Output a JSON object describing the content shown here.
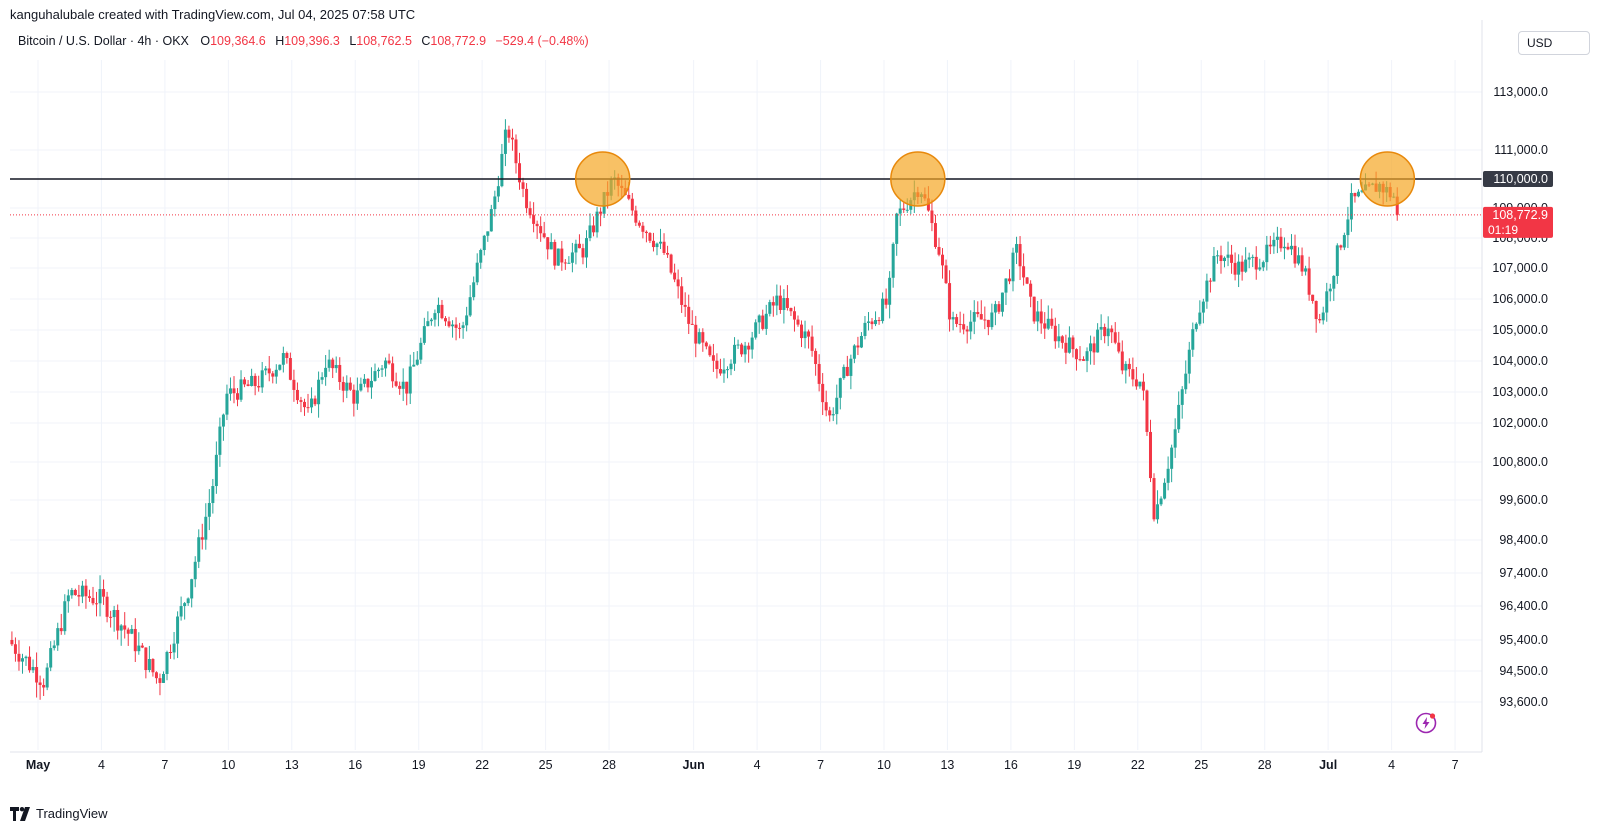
{
  "header": {
    "credit": "kanguhalubale created with TradingView.com, Jul 04, 2025 07:58 UTC",
    "symbol": "Bitcoin / U.S. Dollar · 4h · OKX",
    "open_label": "O",
    "open": "109,364.6",
    "high_label": "H",
    "high": "109,396.3",
    "low_label": "L",
    "low": "108,762.5",
    "close_label": "C",
    "close": "108,772.9",
    "change": "−529.4 (−0.48%)",
    "currency": "USD"
  },
  "footer": {
    "brand": "TradingView"
  },
  "icons": {
    "brand": "tradingview-logo-icon",
    "bolt": "lightning-bolt-icon"
  },
  "colors": {
    "up": "#26a69a",
    "down": "#f23645",
    "highlight": "#f5a623",
    "resistance": "#131722"
  },
  "chart_data": {
    "type": "candlestick",
    "interval": "4h",
    "y_axis_ticks": [
      "113,000.0",
      "111,000.0",
      "109,000.0",
      "108,000.0",
      "107,000.0",
      "106,000.0",
      "105,000.0",
      "104,000.0",
      "103,000.0",
      "102,000.0",
      "100,800.0",
      "99,600.0",
      "98,400.0",
      "97,400.0",
      "96,400.0",
      "95,400.0",
      "94,500.0",
      "93,600.0"
    ],
    "y_tick_values": [
      113000,
      111000,
      109000,
      108000,
      107000,
      106000,
      105000,
      104000,
      103000,
      102000,
      100800,
      99600,
      98400,
      97400,
      96400,
      95400,
      94500,
      93600
    ],
    "x_axis_ticks": [
      {
        "label": "May",
        "bold": true,
        "day": 0
      },
      {
        "label": "4",
        "day": 3
      },
      {
        "label": "7",
        "day": 6
      },
      {
        "label": "10",
        "day": 9
      },
      {
        "label": "13",
        "day": 12
      },
      {
        "label": "16",
        "day": 15
      },
      {
        "label": "19",
        "day": 18
      },
      {
        "label": "22",
        "day": 21
      },
      {
        "label": "25",
        "day": 24
      },
      {
        "label": "28",
        "day": 27
      },
      {
        "label": "Jun",
        "bold": true,
        "day": 31
      },
      {
        "label": "4",
        "day": 34
      },
      {
        "label": "7",
        "day": 37
      },
      {
        "label": "10",
        "day": 40
      },
      {
        "label": "13",
        "day": 43
      },
      {
        "label": "16",
        "day": 46
      },
      {
        "label": "19",
        "day": 49
      },
      {
        "label": "22",
        "day": 52
      },
      {
        "label": "25",
        "day": 55
      },
      {
        "label": "28",
        "day": 58
      },
      {
        "label": "Jul",
        "bold": true,
        "day": 61
      },
      {
        "label": "4",
        "day": 64
      },
      {
        "label": "7",
        "day": 67
      }
    ],
    "resistance_level": 110000,
    "resistance_label": "110,000.0",
    "last_price": 108772.9,
    "last_price_label": "108,772.9",
    "countdown": "01:19",
    "highlight_circles": [
      {
        "day": 26.7,
        "price": 110000
      },
      {
        "day": 41.6,
        "price": 110000
      },
      {
        "day": 63.8,
        "price": 110000
      }
    ],
    "key_closes": [
      {
        "day": -1.4,
        "price": 95400
      },
      {
        "day": 0.3,
        "price": 94200
      },
      {
        "day": 1.5,
        "price": 96800
      },
      {
        "day": 3,
        "price": 96600
      },
      {
        "day": 4.4,
        "price": 95500
      },
      {
        "day": 5.7,
        "price": 94200
      },
      {
        "day": 7.1,
        "price": 96900
      },
      {
        "day": 8.2,
        "price": 99800
      },
      {
        "day": 8.9,
        "price": 102900
      },
      {
        "day": 10.4,
        "price": 103300
      },
      {
        "day": 11.6,
        "price": 104100
      },
      {
        "day": 12.8,
        "price": 102200
      },
      {
        "day": 13.6,
        "price": 104000
      },
      {
        "day": 15,
        "price": 102800
      },
      {
        "day": 16.4,
        "price": 104000
      },
      {
        "day": 17.4,
        "price": 103100
      },
      {
        "day": 18.8,
        "price": 105900
      },
      {
        "day": 20,
        "price": 104900
      },
      {
        "day": 21.5,
        "price": 109000
      },
      {
        "day": 22.2,
        "price": 111800
      },
      {
        "day": 23,
        "price": 109400
      },
      {
        "day": 24.5,
        "price": 107300
      },
      {
        "day": 25.8,
        "price": 107600
      },
      {
        "day": 27.2,
        "price": 110000
      },
      {
        "day": 28.3,
        "price": 108700
      },
      {
        "day": 29.6,
        "price": 107500
      },
      {
        "day": 30.8,
        "price": 105200
      },
      {
        "day": 32,
        "price": 103700
      },
      {
        "day": 33.5,
        "price": 104600
      },
      {
        "day": 35,
        "price": 106000
      },
      {
        "day": 36.5,
        "price": 104600
      },
      {
        "day": 37.4,
        "price": 102100
      },
      {
        "day": 38.3,
        "price": 103900
      },
      {
        "day": 39.2,
        "price": 105200
      },
      {
        "day": 40.2,
        "price": 105900
      },
      {
        "day": 40.6,
        "price": 108700
      },
      {
        "day": 41.7,
        "price": 109800
      },
      {
        "day": 42.6,
        "price": 107600
      },
      {
        "day": 43.2,
        "price": 105200
      },
      {
        "day": 44.3,
        "price": 105300
      },
      {
        "day": 45.2,
        "price": 105400
      },
      {
        "day": 46.3,
        "price": 107600
      },
      {
        "day": 47,
        "price": 105600
      },
      {
        "day": 48.2,
        "price": 104800
      },
      {
        "day": 49.5,
        "price": 104100
      },
      {
        "day": 50.6,
        "price": 105200
      },
      {
        "day": 51.3,
        "price": 103700
      },
      {
        "day": 52.2,
        "price": 103300
      },
      {
        "day": 52.8,
        "price": 99100
      },
      {
        "day": 53.7,
        "price": 101500
      },
      {
        "day": 54.8,
        "price": 105600
      },
      {
        "day": 55.8,
        "price": 107500
      },
      {
        "day": 56.8,
        "price": 107000
      },
      {
        "day": 58,
        "price": 107400
      },
      {
        "day": 59,
        "price": 108000
      },
      {
        "day": 59.8,
        "price": 107000
      },
      {
        "day": 60.6,
        "price": 105300
      },
      {
        "day": 61.3,
        "price": 107100
      },
      {
        "day": 62.1,
        "price": 109200
      },
      {
        "day": 63.4,
        "price": 109800
      },
      {
        "day": 64.1,
        "price": 109400
      },
      {
        "day": 64.4,
        "price": 108773
      }
    ]
  }
}
